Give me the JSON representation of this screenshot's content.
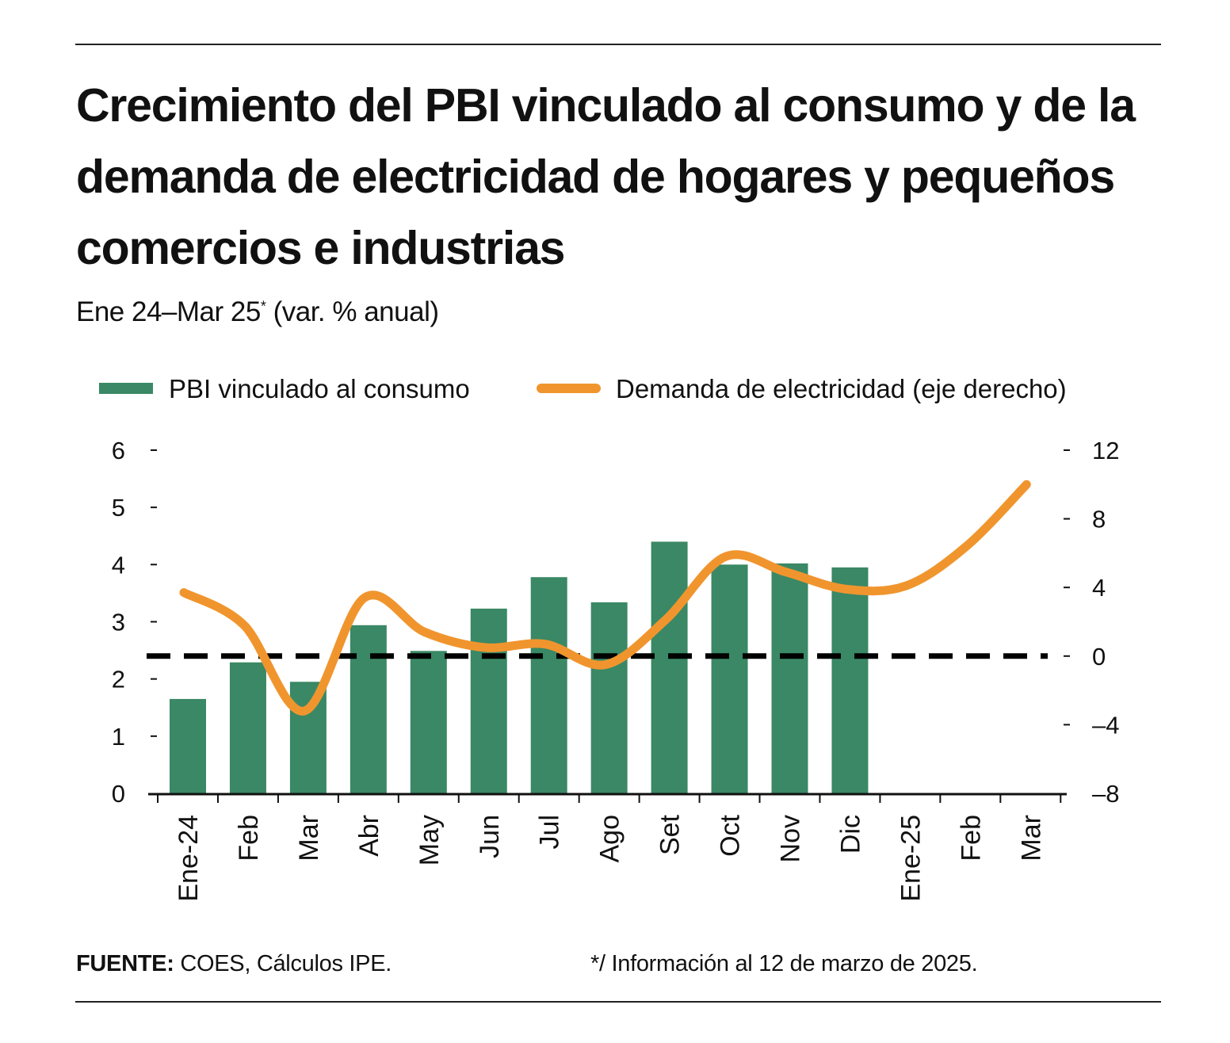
{
  "title": "Crecimiento del PBI vinculado al consumo y de la demanda de electricidad de hogares y pequeños comercios e industrias",
  "subtitle": "Ene 24–Mar 25",
  "subtitle_mark": "*",
  "subtitle_unit": "(var. % anual)",
  "footer": {
    "source_label": "FUENTE:",
    "source_text": "COES, Cálculos IPE.",
    "note": "*/ Información al 12 de marzo de 2025."
  },
  "colors": {
    "bars": "#3a8865",
    "line": "#f0952e",
    "reference": "#000000"
  },
  "chart_data": {
    "type": "bar+line",
    "categories": [
      "Ene-24",
      "Feb",
      "Mar",
      "Abr",
      "May",
      "Jun",
      "Jul",
      "Ago",
      "Set",
      "Oct",
      "Nov",
      "Dic",
      "Ene-25",
      "Feb",
      "Mar"
    ],
    "series": [
      {
        "name": "PBI vinculado al consumo",
        "type": "bar",
        "axis": "left",
        "values": [
          1.65,
          2.29,
          1.95,
          2.94,
          2.49,
          3.23,
          3.78,
          3.34,
          4.4,
          4.0,
          4.02,
          3.95,
          null,
          null,
          null
        ]
      },
      {
        "name": "Demanda de electricidad (eje derecho)",
        "type": "line",
        "axis": "right",
        "values": [
          3.7,
          1.8,
          -3.2,
          3.4,
          1.4,
          0.5,
          0.7,
          -0.5,
          2.1,
          5.8,
          4.9,
          3.9,
          4.1,
          6.4,
          10.0
        ]
      }
    ],
    "left_axis": {
      "ylim": [
        0,
        6
      ],
      "ticks": [
        0,
        1,
        2,
        3,
        4,
        5,
        6
      ]
    },
    "right_axis": {
      "ylim": [
        -8,
        12
      ],
      "ticks": [
        -8,
        -4,
        0,
        4,
        8,
        12
      ]
    },
    "reference_line": {
      "axis": "right",
      "value": 0,
      "style": "dashed"
    },
    "legend_position": "top",
    "grid": false
  }
}
